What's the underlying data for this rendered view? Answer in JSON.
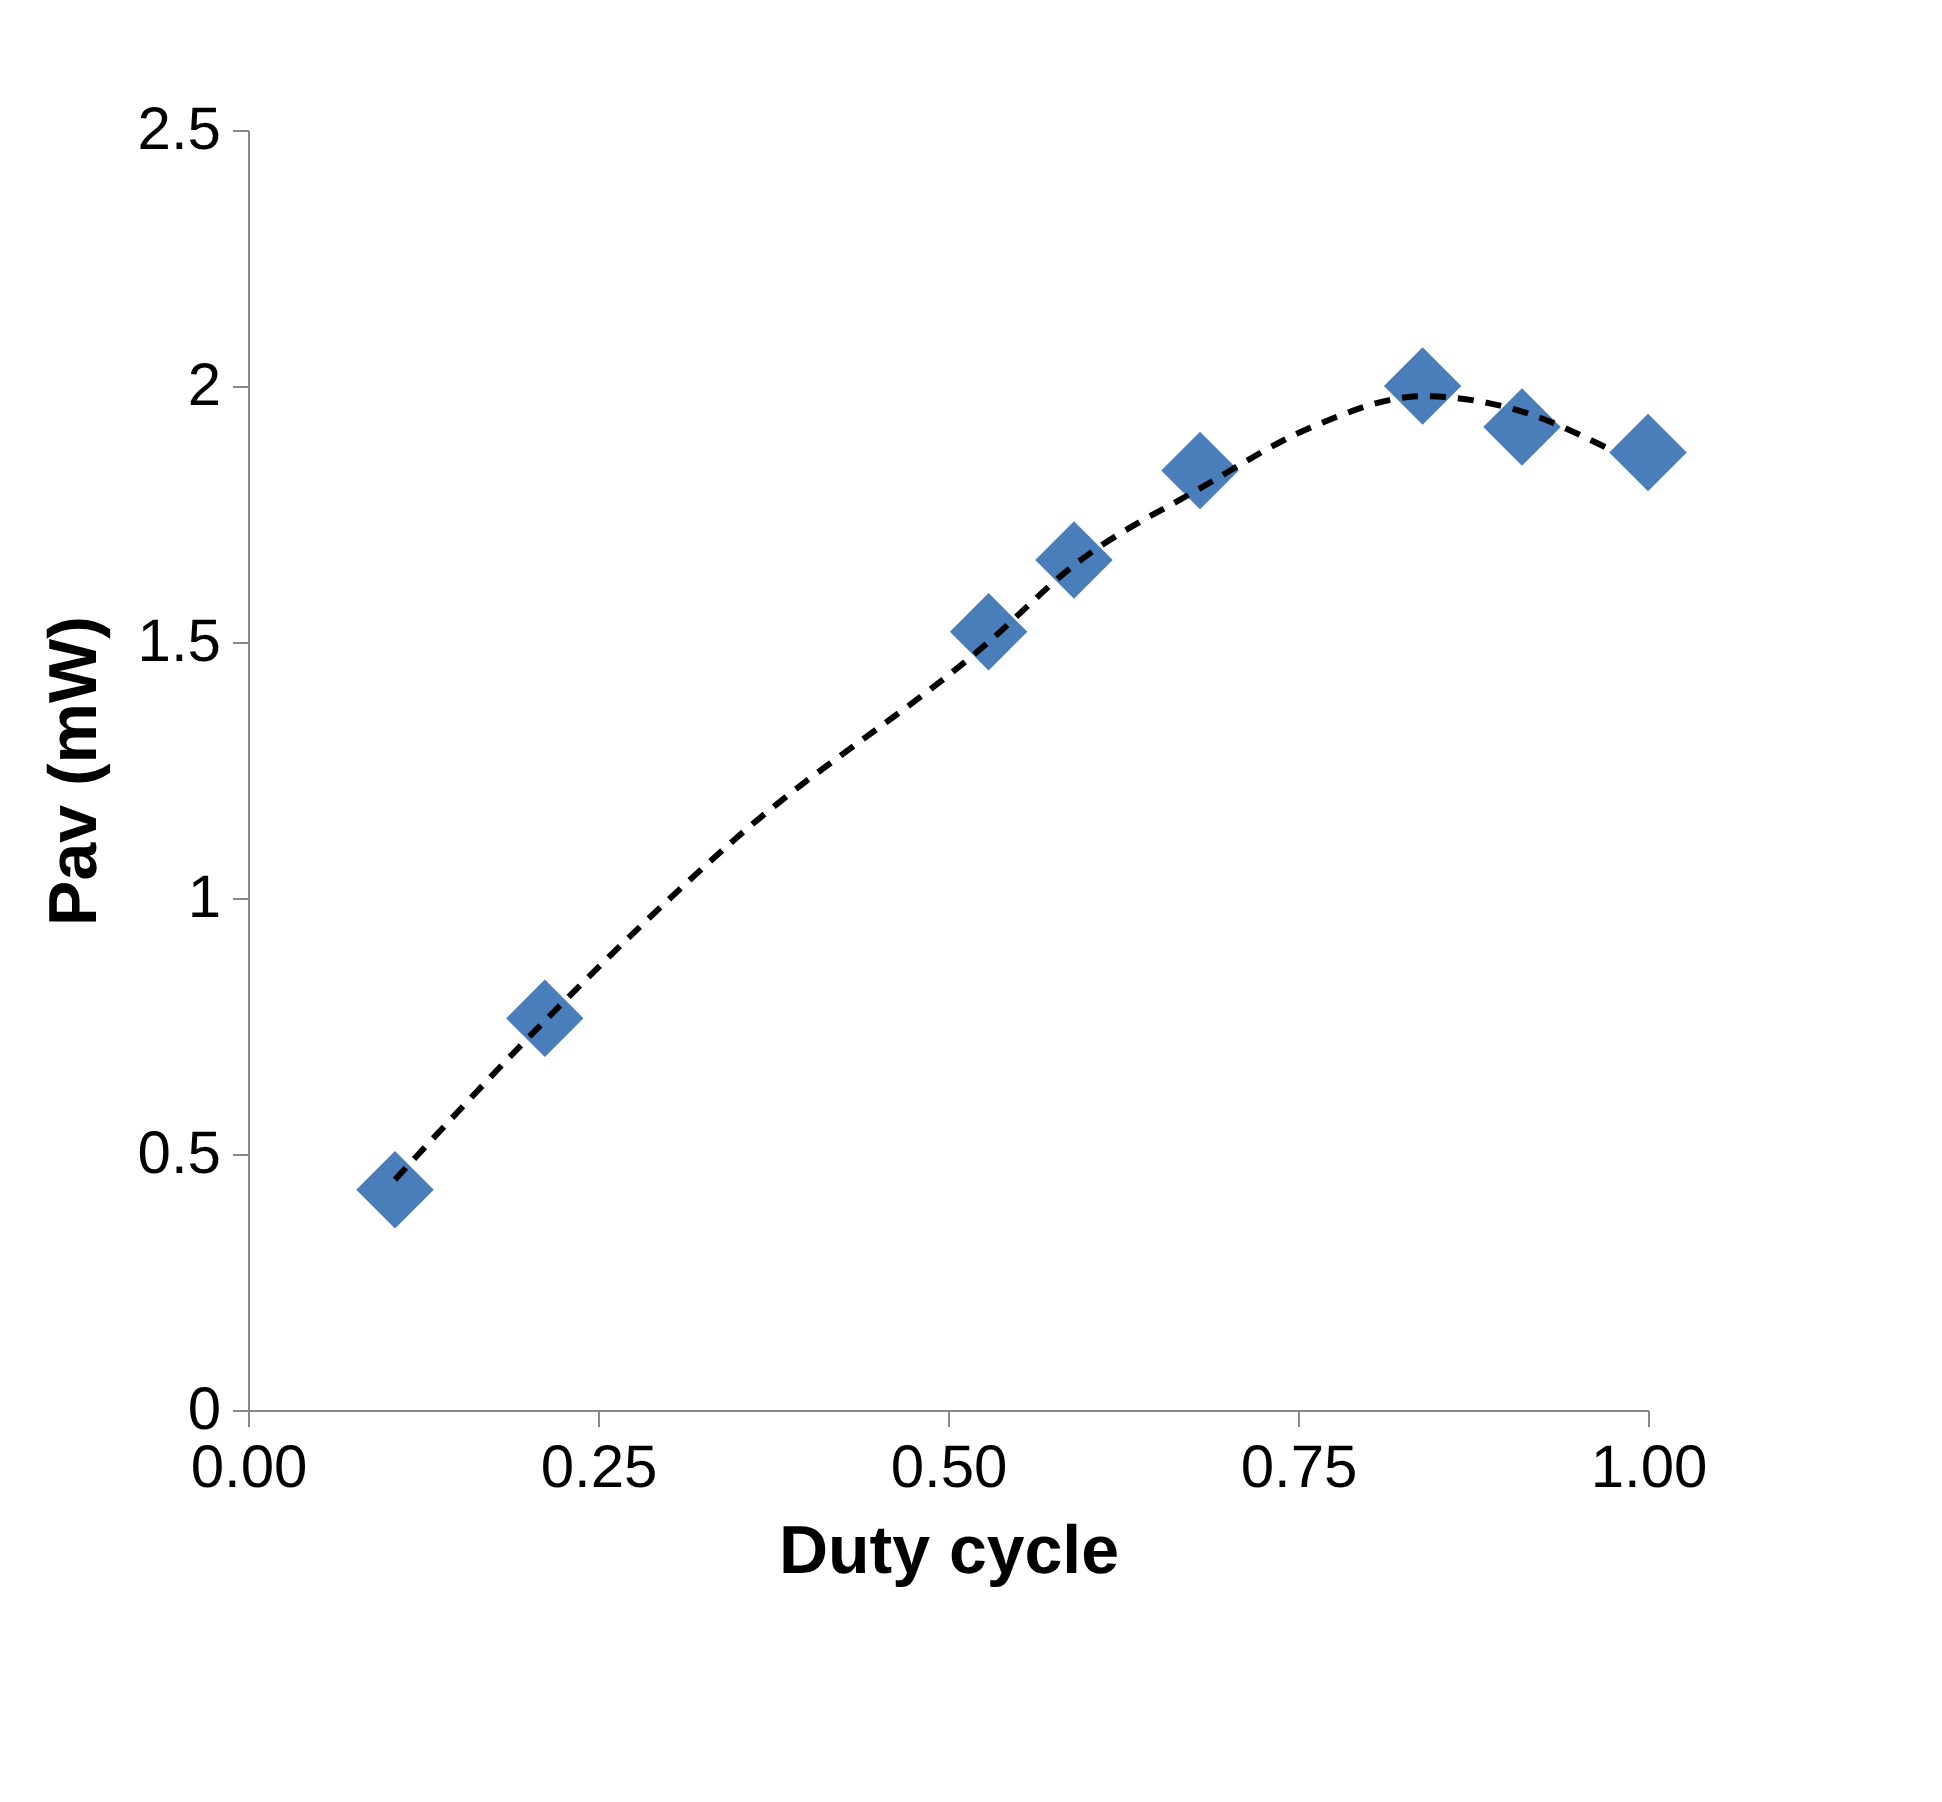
{
  "chart_data": {
    "type": "scatter",
    "xlabel": "Duty cycle",
    "ylabel": "Pav (mW)",
    "x": [
      0.105,
      0.212,
      0.529,
      0.59,
      0.68,
      0.839,
      0.91,
      1.0
    ],
    "series": [
      {
        "color": "#4a7ebb",
        "marker": "diamond",
        "values": [
          0.43,
          0.765,
          1.52,
          1.66,
          1.835,
          2.0,
          1.92,
          1.87
        ]
      },
      {
        "type": "line",
        "color": "#000000",
        "line_style": "dashed",
        "marker": "none",
        "x": [
          0.105,
          0.212,
          0.35,
          0.529,
          0.59,
          0.68,
          0.76,
          0.839,
          0.91,
          0.97
        ],
        "values": [
          0.45,
          0.76,
          1.12,
          1.5,
          1.65,
          1.8,
          1.92,
          1.98,
          1.95,
          1.88
        ]
      }
    ],
    "xlim": [
      0,
      1
    ],
    "xticks": [
      {
        "value": 0,
        "label": "0.00"
      },
      {
        "value": 0.25,
        "label": "0.25"
      },
      {
        "value": 0.5,
        "label": "0.50"
      },
      {
        "value": 0.75,
        "label": "0.75"
      },
      {
        "value": 1,
        "label": "1.00"
      }
    ],
    "ylim": [
      0,
      2.5
    ],
    "yticks": [
      0,
      0.5,
      1,
      1.5,
      2,
      2.5
    ],
    "grid": false,
    "legend": false
  }
}
